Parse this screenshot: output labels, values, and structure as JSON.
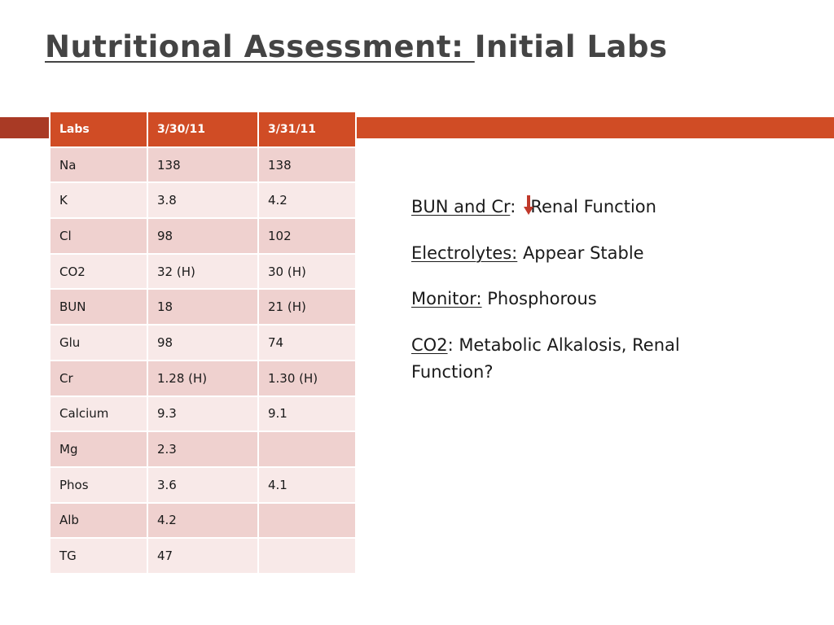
{
  "title": {
    "underlined": "Nutritional Assessment: ",
    "rest": "Initial Labs"
  },
  "table": {
    "headers": [
      "Labs",
      "3/30/11",
      "3/31/11"
    ],
    "rows": [
      [
        "Na",
        "138",
        "138"
      ],
      [
        "K",
        "3.8",
        "4.2"
      ],
      [
        "Cl",
        "98",
        "102"
      ],
      [
        "CO2",
        "32 (H)",
        "30 (H)"
      ],
      [
        "BUN",
        "18",
        "21 (H)"
      ],
      [
        "Glu",
        "98",
        "74"
      ],
      [
        "Cr",
        "1.28 (H)",
        "1.30 (H)"
      ],
      [
        "Calcium",
        "9.3",
        "9.1"
      ],
      [
        "Mg",
        "2.3",
        ""
      ],
      [
        "Phos",
        "3.6",
        "4.1"
      ],
      [
        "Alb",
        "4.2",
        ""
      ],
      [
        "TG",
        "47",
        ""
      ]
    ]
  },
  "notes": [
    {
      "label": "BUN and Cr",
      "sep": ":",
      "text": "Renal Function",
      "has_arrow": true
    },
    {
      "label": "Electrolytes:",
      "sep": "",
      "text": " Appear Stable",
      "has_arrow": false
    },
    {
      "label": "Monitor:",
      "sep": "",
      "text": " Phosphorous",
      "has_arrow": false
    },
    {
      "label": "CO2",
      "sep": ":",
      "text": " Metabolic Alkalosis, Renal Function?",
      "has_arrow": false
    }
  ],
  "icons": {
    "arrow": "down-arrow-icon"
  },
  "colors": {
    "accent": "#d04c25",
    "accent_dark": "#a93a25",
    "row_odd": "#efd1cf",
    "row_even": "#f8e9e8"
  }
}
